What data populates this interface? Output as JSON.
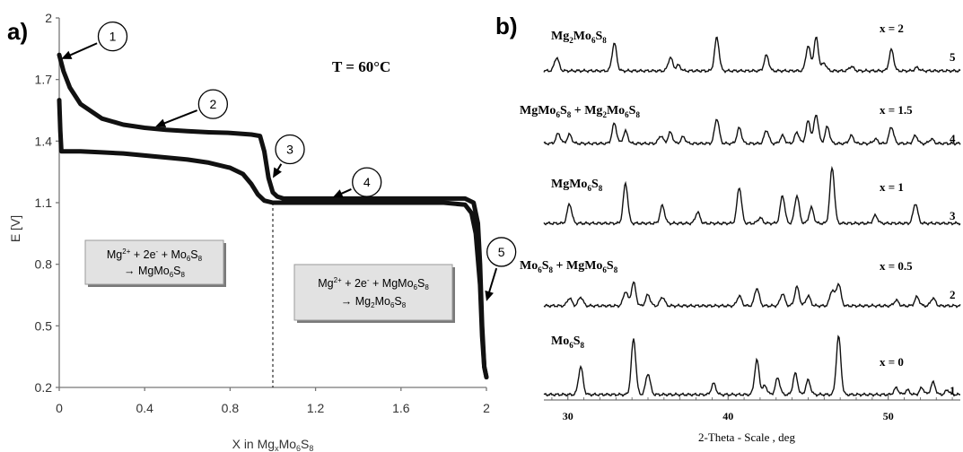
{
  "chart_data": [
    {
      "id": "a",
      "panel_label": "a)",
      "type": "line",
      "xlabel": "X in Mg",
      "xlabel_sub1": "x",
      "xlabel_mid": "Mo",
      "xlabel_sub2": "6",
      "xlabel_end": "S",
      "xlabel_sub3": "8",
      "ylabel": "E [V]",
      "xlim": [
        0,
        2
      ],
      "ylim": [
        0.2,
        2
      ],
      "xticks": [
        0,
        0.4,
        0.8,
        1.2,
        1.6,
        2
      ],
      "xtick_labels": [
        "0",
        "0.4",
        "0.8",
        "1.2",
        "1.6",
        "2"
      ],
      "yticks": [
        0.2,
        0.5,
        0.8,
        1.1,
        1.4,
        1.7,
        2
      ],
      "ytick_labels": [
        "0.2",
        "0.5",
        "0.8",
        "1.1",
        "1.4",
        "1.7",
        "2"
      ],
      "temperature_label": "T = 60°C",
      "dashed_vline_x": 1.0,
      "series": [
        {
          "role": "charge",
          "x": [
            0,
            0.02,
            0.05,
            0.1,
            0.2,
            0.3,
            0.4,
            0.5,
            0.6,
            0.7,
            0.8,
            0.9,
            0.94,
            0.96,
            0.98,
            1.0,
            1.02,
            1.05,
            1.1,
            1.2,
            1.4,
            1.6,
            1.8,
            1.9,
            1.94,
            1.96,
            1.97,
            1.98,
            1.99,
            2.0
          ],
          "y": [
            1.82,
            1.74,
            1.66,
            1.58,
            1.51,
            1.48,
            1.465,
            1.455,
            1.448,
            1.443,
            1.44,
            1.432,
            1.425,
            1.35,
            1.22,
            1.15,
            1.13,
            1.12,
            1.12,
            1.12,
            1.12,
            1.12,
            1.12,
            1.12,
            1.1,
            1.0,
            0.8,
            0.5,
            0.3,
            0.25
          ]
        },
        {
          "role": "discharge",
          "x": [
            0,
            0.005,
            0.01,
            0.05,
            0.1,
            0.2,
            0.3,
            0.4,
            0.5,
            0.6,
            0.7,
            0.8,
            0.86,
            0.9,
            0.93,
            0.96,
            1.0,
            1.1,
            1.2,
            1.4,
            1.6,
            1.8,
            1.9,
            1.93,
            1.95,
            1.97,
            1.98,
            1.99,
            2.0
          ],
          "y": [
            1.6,
            1.45,
            1.35,
            1.35,
            1.35,
            1.345,
            1.34,
            1.33,
            1.32,
            1.31,
            1.295,
            1.27,
            1.24,
            1.19,
            1.14,
            1.11,
            1.1,
            1.1,
            1.1,
            1.1,
            1.1,
            1.1,
            1.09,
            1.05,
            0.95,
            0.7,
            0.45,
            0.3,
            0.25
          ]
        }
      ],
      "markers": [
        {
          "label": "1",
          "x": 0.25,
          "y": 1.91,
          "arrow_to": [
            0.01,
            1.8
          ]
        },
        {
          "label": "2",
          "x": 0.72,
          "y": 1.58,
          "arrow_to": [
            0.45,
            1.47
          ]
        },
        {
          "label": "3",
          "x": 1.08,
          "y": 1.36,
          "arrow_to": [
            1.0,
            1.22
          ]
        },
        {
          "label": "4",
          "x": 1.44,
          "y": 1.2,
          "arrow_to": [
            1.28,
            1.125
          ]
        },
        {
          "label": "5",
          "x": 2.07,
          "y": 0.86,
          "arrow_to": [
            2.0,
            0.62
          ]
        }
      ],
      "boxes": [
        {
          "line1_parts": [
            "Mg",
            "2+",
            " + 2e",
            "-",
            " + Mo",
            "6",
            "S",
            "8"
          ],
          "line2_parts": [
            "→ MgMo",
            "6",
            "S",
            "8"
          ]
        },
        {
          "line1_parts": [
            "Mg",
            "2+",
            " + 2e",
            "-",
            " + MgMo",
            "6",
            "S",
            "8"
          ],
          "line2_parts": [
            "→ Mg",
            "2",
            "Mo",
            "6",
            "S",
            "8"
          ]
        }
      ]
    },
    {
      "id": "b",
      "panel_label": "b)",
      "type": "line",
      "subtype": "xrd-stack",
      "xlabel": "2-Theta - Scale , deg",
      "xlim": [
        28.5,
        54.5
      ],
      "xticks": [
        30,
        40,
        50
      ],
      "xtick_labels": [
        "30",
        "40",
        "50"
      ],
      "series": [
        {
          "index": "5",
          "x_label": "x = 2",
          "name_parts": [
            "Mg",
            "2",
            "Mo",
            "6",
            "S",
            "8"
          ],
          "peaks": [
            [
              29.3,
              24
            ],
            [
              32.9,
              50
            ],
            [
              36.4,
              24
            ],
            [
              36.9,
              10
            ],
            [
              39.3,
              60
            ],
            [
              42.4,
              28
            ],
            [
              45.0,
              45
            ],
            [
              45.5,
              60
            ],
            [
              46.0,
              14
            ],
            [
              47.7,
              8
            ],
            [
              50.2,
              38
            ],
            [
              51.8,
              6
            ]
          ]
        },
        {
          "index": "4",
          "x_label": "x = 1.5",
          "name_parts": [
            "MgMo",
            "6",
            "S",
            "8",
            " + Mg",
            "2",
            "Mo",
            "6",
            "S",
            "8"
          ],
          "peaks": [
            [
              29.4,
              18
            ],
            [
              30.1,
              16
            ],
            [
              32.9,
              36
            ],
            [
              33.6,
              22
            ],
            [
              35.8,
              14
            ],
            [
              36.4,
              20
            ],
            [
              37.2,
              12
            ],
            [
              39.3,
              45
            ],
            [
              40.7,
              28
            ],
            [
              42.4,
              24
            ],
            [
              43.4,
              14
            ],
            [
              44.3,
              20
            ],
            [
              45.0,
              40
            ],
            [
              45.5,
              52
            ],
            [
              46.2,
              30
            ],
            [
              47.7,
              14
            ],
            [
              49.2,
              8
            ],
            [
              50.2,
              30
            ],
            [
              51.7,
              14
            ],
            [
              52.7,
              8
            ]
          ]
        },
        {
          "index": "3",
          "x_label": "x = 1",
          "name_parts": [
            "MgMo",
            "6",
            "S",
            "8"
          ],
          "peaks": [
            [
              30.1,
              35
            ],
            [
              33.6,
              72
            ],
            [
              35.9,
              32
            ],
            [
              38.1,
              20
            ],
            [
              40.7,
              65
            ],
            [
              42.0,
              10
            ],
            [
              43.4,
              50
            ],
            [
              44.3,
              50
            ],
            [
              45.2,
              28
            ],
            [
              46.5,
              100
            ],
            [
              49.2,
              14
            ],
            [
              51.7,
              36
            ]
          ]
        },
        {
          "index": "2",
          "x_label": "x = 0.5",
          "name_parts": [
            "Mo",
            "6",
            "S",
            "8",
            " + MgMo",
            "6",
            "S",
            "8"
          ],
          "peaks": [
            [
              30.1,
              14
            ],
            [
              30.8,
              16
            ],
            [
              33.6,
              26
            ],
            [
              34.1,
              42
            ],
            [
              35.0,
              20
            ],
            [
              35.9,
              16
            ],
            [
              40.7,
              18
            ],
            [
              41.8,
              32
            ],
            [
              43.4,
              22
            ],
            [
              44.3,
              34
            ],
            [
              45.0,
              18
            ],
            [
              46.5,
              28
            ],
            [
              46.9,
              40
            ],
            [
              50.5,
              10
            ],
            [
              51.8,
              16
            ],
            [
              52.8,
              14
            ]
          ]
        },
        {
          "index": "1",
          "x_label": "x = 0",
          "name_parts": [
            "Mo",
            "6",
            "S",
            "8"
          ],
          "peaks": [
            [
              30.8,
              50
            ],
            [
              34.1,
              100
            ],
            [
              35.0,
              38
            ],
            [
              39.1,
              20
            ],
            [
              41.8,
              62
            ],
            [
              42.3,
              16
            ],
            [
              43.1,
              30
            ],
            [
              44.2,
              38
            ],
            [
              45.0,
              26
            ],
            [
              46.9,
              105
            ],
            [
              50.5,
              12
            ],
            [
              51.2,
              8
            ],
            [
              52.1,
              12
            ],
            [
              52.8,
              22
            ],
            [
              53.7,
              8
            ]
          ]
        }
      ]
    }
  ]
}
